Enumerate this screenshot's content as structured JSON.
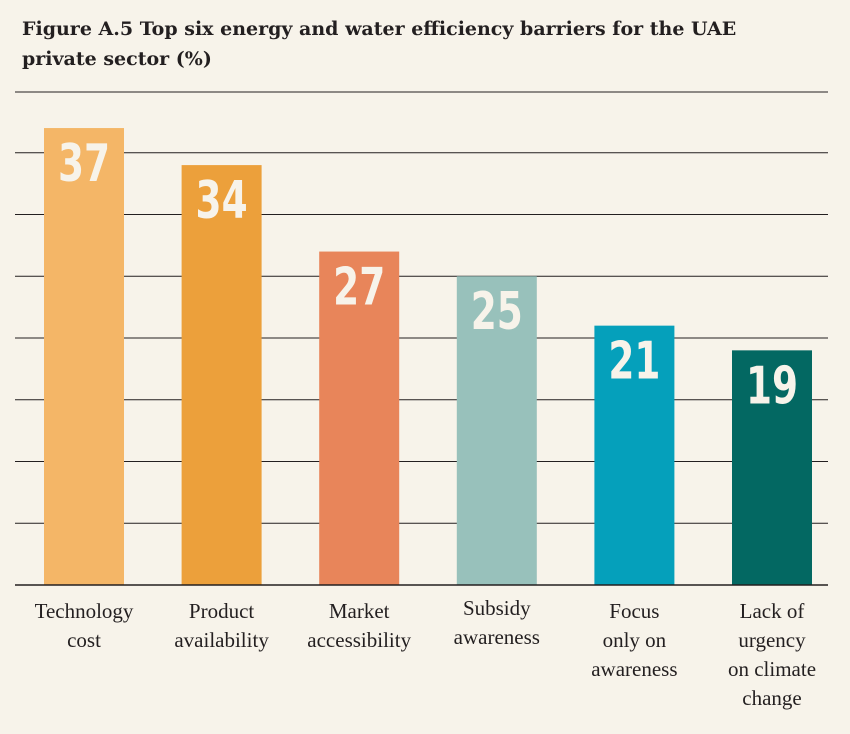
{
  "title": "Figure A.5 Top six energy and water efficiency barriers for the UAE private sector (%)",
  "chart_data": {
    "type": "bar",
    "title": "Figure A.5 Top six energy and water efficiency barriers for the UAE private sector (%)",
    "xlabel": "",
    "ylabel": "",
    "ylim": [
      0,
      40
    ],
    "grid": true,
    "legend": "none",
    "categories": [
      "Technology\ncost",
      "Product\navailability",
      "Market\naccessibility",
      "Subsidy\nawareness",
      "Focus\nonly on\nawareness",
      "Lack of\nurgency\non climate\nchange"
    ],
    "values": [
      37,
      34,
      27,
      25,
      21,
      19
    ],
    "colors": [
      "#f4b667",
      "#eca03b",
      "#e8855a",
      "#98c1bb",
      "#05a0bb",
      "#036862"
    ],
    "label_color": "#f7f3ea",
    "grid_color": "#231f20"
  }
}
